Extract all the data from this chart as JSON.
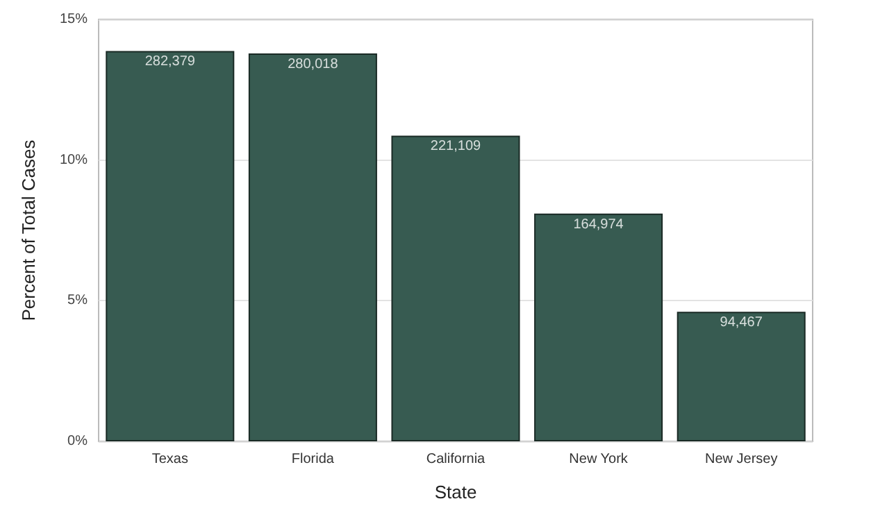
{
  "chart_data": {
    "type": "bar",
    "xlabel": "State",
    "ylabel": "Percent of Total Cases",
    "categories": [
      "Texas",
      "Florida",
      "California",
      "New York",
      "New Jersey"
    ],
    "values": [
      13.88,
      13.79,
      10.87,
      8.1,
      4.61
    ],
    "annotations": [
      {
        "text": "282,379",
        "x": "Texas",
        "y": 13.88
      },
      {
        "text": "280,018",
        "x": "Florida",
        "y": 13.79
      },
      {
        "text": "221,109",
        "x": "California",
        "y": 10.87
      },
      {
        "text": "164,974",
        "x": "New York",
        "y": 8.1
      },
      {
        "text": "94,467",
        "x": "New Jersey",
        "y": 4.61
      }
    ],
    "color": "#375b51",
    "ylim": [
      0,
      15
    ],
    "yticks": [
      {
        "value": 0,
        "label": "0%"
      },
      {
        "value": 5,
        "label": "5%"
      },
      {
        "value": 10,
        "label": "10%"
      },
      {
        "value": 15,
        "label": "15%"
      }
    ],
    "grid": "y"
  }
}
